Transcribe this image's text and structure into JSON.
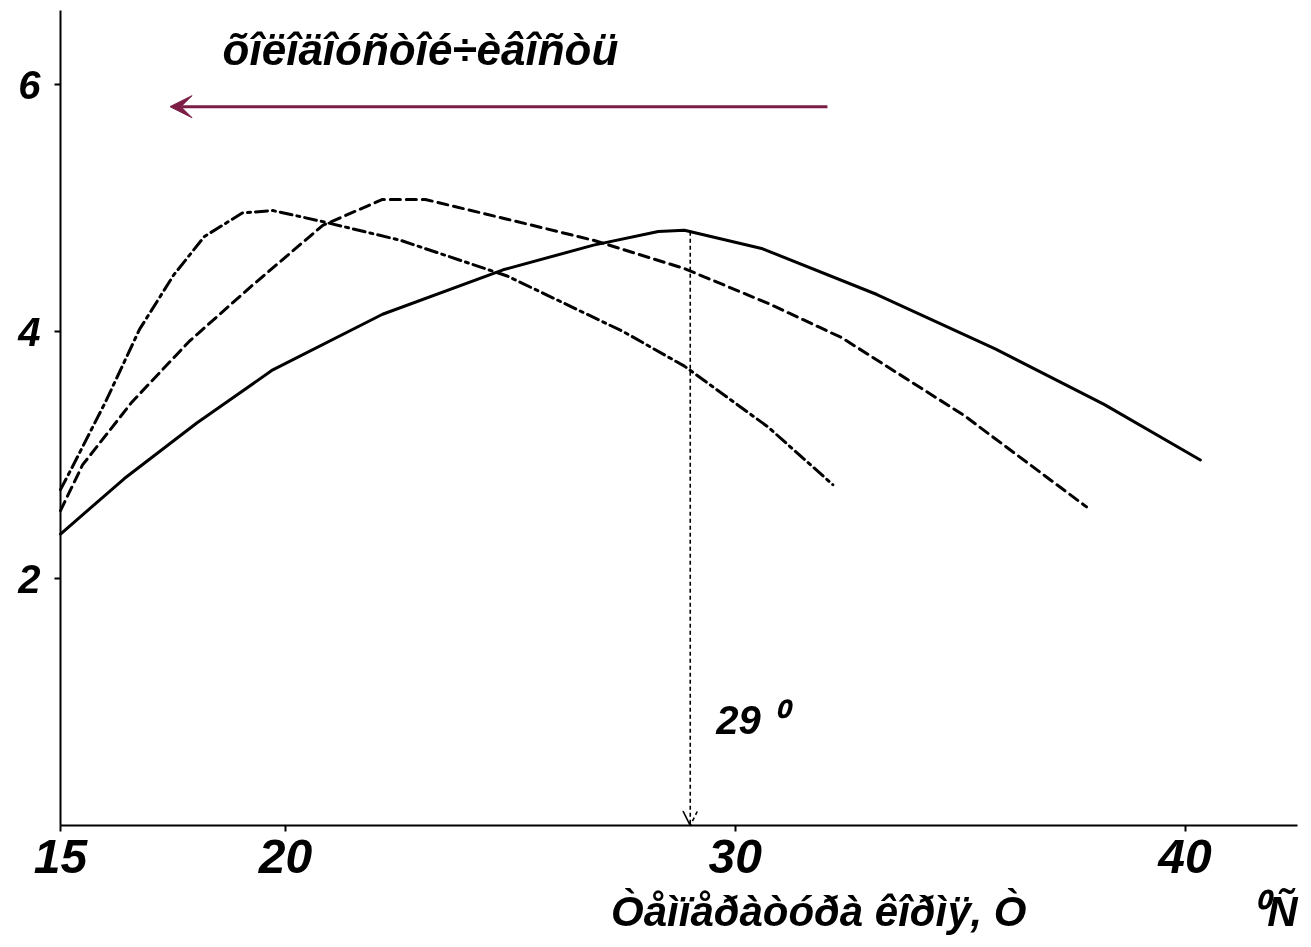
{
  "chart_data": {
    "type": "line",
    "xlabel": "Òåìïåðàòóðà êîðìÿ, Ò",
    "annotations": [
      "õîëîäîóñòîé÷èâîñòü",
      "⁰Ñ"
    ],
    "xlim": [
      15,
      42.5
    ],
    "xticks": [
      15,
      20,
      30,
      40
    ],
    "ylim": [
      0,
      6.6
    ],
    "yticks": [
      2,
      4,
      6
    ],
    "series": [
      {
        "color": "#000000",
        "line_style": "solid",
        "x": [
          15.0,
          16.42,
          18.03,
          19.72,
          22.16,
          24.84,
          26.85,
          28.29,
          28.87,
          30.61,
          33.15,
          35.78,
          38.2,
          40.34
        ],
        "values": [
          2.36,
          2.81,
          3.26,
          3.69,
          4.14,
          4.5,
          4.7,
          4.81,
          4.82,
          4.67,
          4.3,
          3.86,
          3.41,
          2.96
        ]
      },
      {
        "color": "#000000",
        "line_style": "dashed",
        "x": [
          15.0,
          15.49,
          16.59,
          17.86,
          19.22,
          20.83,
          22.16,
          23.11,
          24.93,
          26.84,
          28.87,
          30.72,
          32.37,
          35.09,
          37.81
        ],
        "values": [
          2.55,
          2.92,
          3.43,
          3.92,
          4.36,
          4.86,
          5.07,
          5.07,
          4.91,
          4.74,
          4.51,
          4.23,
          3.95,
          3.32,
          2.58
        ]
      },
      {
        "color": "#000000",
        "line_style": "dashdot",
        "x": [
          15.0,
          15.23,
          16.0,
          16.76,
          17.52,
          18.2,
          19.04,
          19.72,
          20.83,
          22.55,
          24.93,
          27.51,
          28.87,
          30.72,
          32.17
        ],
        "values": [
          2.72,
          2.88,
          3.43,
          4.02,
          4.46,
          4.77,
          4.96,
          4.98,
          4.89,
          4.74,
          4.45,
          4.0,
          3.72,
          3.23,
          2.76
        ]
      }
    ],
    "ref_lines": [
      {
        "axis": "x",
        "value": 29,
        "label": "29 ⁰",
        "line_style": "dotted"
      }
    ]
  }
}
